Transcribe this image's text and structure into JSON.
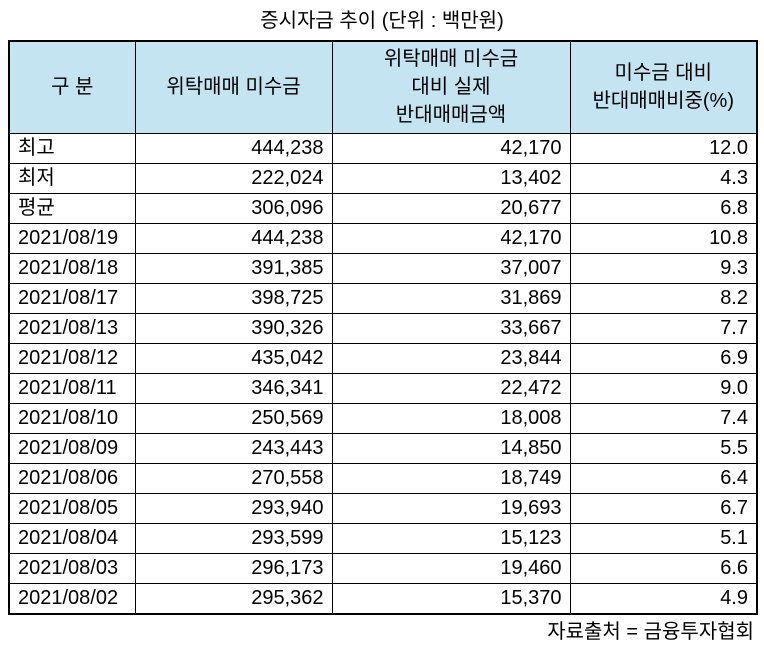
{
  "title": "증시자금 추이 (단위 : 백만원)",
  "source_note": "자료출처 = 금융투자협회",
  "style": {
    "header_bg": "#c4e4f2",
    "border_color": "#000000",
    "text_color": "#000000"
  },
  "chart_data": {
    "type": "table",
    "title": "증시자금 추이",
    "unit": "백만원",
    "columns": [
      "구  분",
      "위탁매매 미수금",
      "위탁매매 미수금\n대비 실제\n반대매매금액",
      "미수금 대비\n반대매매비중(%)"
    ],
    "rows": [
      [
        "최고",
        "444,238",
        "42,170",
        "12.0"
      ],
      [
        "최저",
        "222,024",
        "13,402",
        "4.3"
      ],
      [
        "평균",
        "306,096",
        "20,677",
        "6.8"
      ],
      [
        "2021/08/19",
        "444,238",
        "42,170",
        "10.8"
      ],
      [
        "2021/08/18",
        "391,385",
        "37,007",
        "9.3"
      ],
      [
        "2021/08/17",
        "398,725",
        "31,869",
        "8.2"
      ],
      [
        "2021/08/13",
        "390,326",
        "33,667",
        "7.7"
      ],
      [
        "2021/08/12",
        "435,042",
        "23,844",
        "6.9"
      ],
      [
        "2021/08/11",
        "346,341",
        "22,472",
        "9.0"
      ],
      [
        "2021/08/10",
        "250,569",
        "18,008",
        "7.4"
      ],
      [
        "2021/08/09",
        "243,443",
        "14,850",
        "5.5"
      ],
      [
        "2021/08/06",
        "270,558",
        "18,749",
        "6.4"
      ],
      [
        "2021/08/05",
        "293,940",
        "19,693",
        "6.7"
      ],
      [
        "2021/08/04",
        "293,599",
        "15,123",
        "5.1"
      ],
      [
        "2021/08/03",
        "296,173",
        "19,460",
        "6.6"
      ],
      [
        "2021/08/02",
        "295,362",
        "15,370",
        "4.9"
      ]
    ],
    "source": "금융투자협회"
  }
}
